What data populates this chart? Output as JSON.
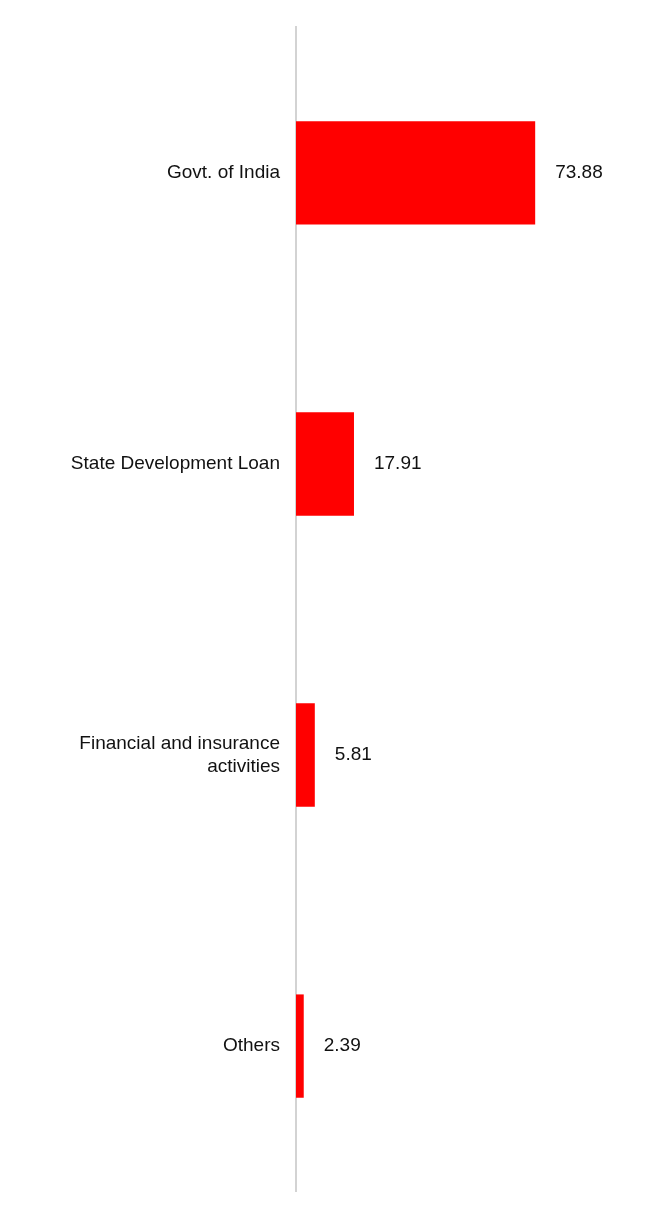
{
  "chart_data": {
    "type": "bar",
    "orientation": "horizontal",
    "categories": [
      "Govt. of India",
      "State Development Loan",
      "Financial and insurance activities",
      "Others"
    ],
    "values": [
      73.88,
      17.91,
      5.81,
      2.39
    ],
    "color": "#ff0000",
    "data_labels": true,
    "tick_labels": "y"
  }
}
